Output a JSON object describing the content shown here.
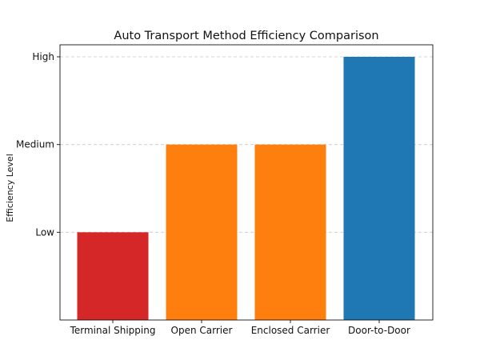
{
  "chart_data": {
    "type": "bar",
    "title": "Auto Transport Method Efficiency Comparison",
    "xlabel": "",
    "ylabel": "Efficiency Level",
    "categories": [
      "Terminal Shipping",
      "Open Carrier",
      "Enclosed Carrier",
      "Door-to-Door"
    ],
    "values": [
      1,
      2,
      2,
      3
    ],
    "colors": [
      "#d62728",
      "#ff7f0e",
      "#ff7f0e",
      "#1f77b4"
    ],
    "ylim": [
      0,
      3
    ],
    "yticks": [
      1,
      2,
      3
    ],
    "ytick_labels": [
      "Low",
      "Medium",
      "High"
    ],
    "grid": "y-dashed",
    "legend": "none"
  }
}
